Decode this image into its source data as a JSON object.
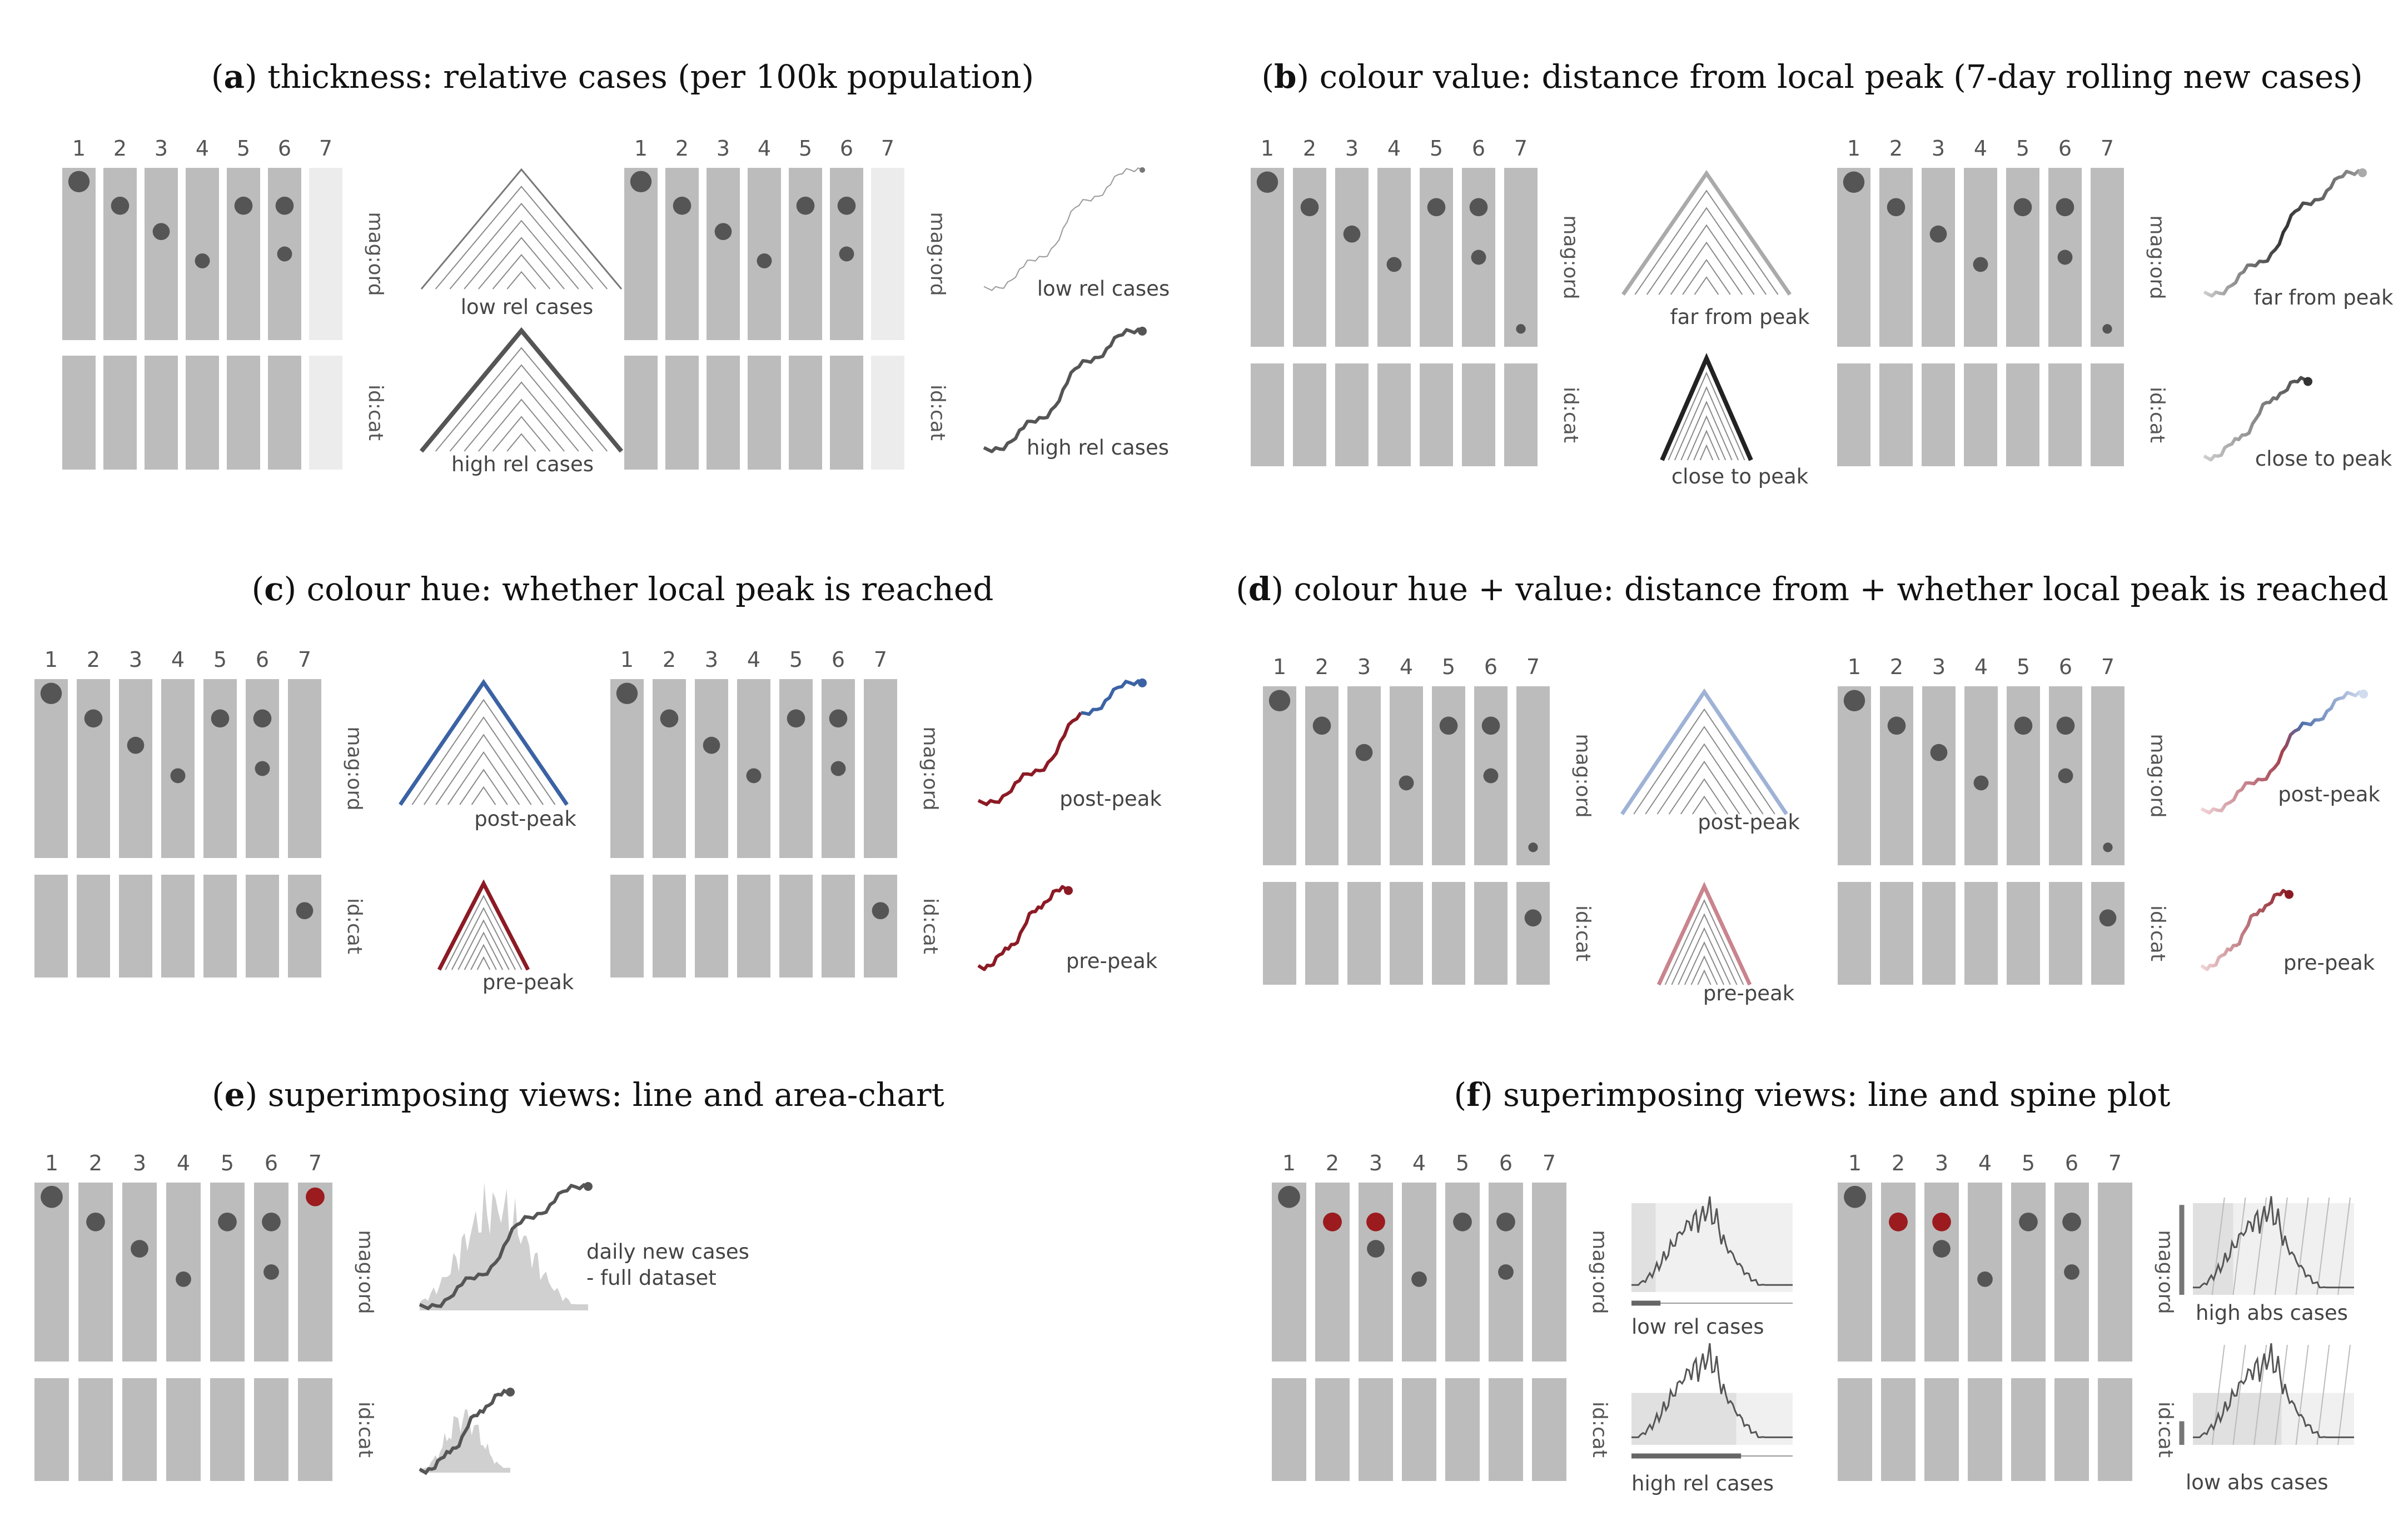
{
  "panels": [
    {
      "id": "a",
      "letter": "a",
      "title": "thickness: relative cases (per 100k population)"
    },
    {
      "id": "b",
      "letter": "b",
      "title": "colour value: distance from local peak (7-day rolling new cases)"
    },
    {
      "id": "c",
      "letter": "c",
      "title": "colour hue: whether local peak is reached"
    },
    {
      "id": "d",
      "letter": "d",
      "title": "colour hue + value: distance from + whether local peak is reached"
    },
    {
      "id": "e",
      "letter": "e",
      "title": "superimposing views: line and area-chart"
    },
    {
      "id": "f",
      "letter": "f",
      "title": "superimposing views: line and spine plot"
    }
  ],
  "column_numbers": [
    "1",
    "2",
    "3",
    "4",
    "5",
    "6",
    "7"
  ],
  "row_labels": {
    "top": "mag:ord",
    "bottom": "id:cat"
  },
  "annotations": {
    "a_low": "low rel cases",
    "a_high": "high rel cases",
    "a_line_low": "low rel cases",
    "a_line_high": "high rel cases",
    "b_far": "far from peak",
    "b_close": "close to peak",
    "b_line_far": "far from peak",
    "b_line_close": "close to peak",
    "c_post": "post-peak",
    "c_pre": "pre-peak",
    "c_line_post": "post-peak",
    "c_line_pre": "pre-peak",
    "d_post": "post-peak",
    "d_pre": "pre-peak",
    "d_line_post": "post-peak",
    "d_line_pre": "pre-peak",
    "e_daily_1": "daily new cases",
    "e_daily_2": "- full dataset",
    "f_low_rel": "low rel cases",
    "f_high_rel": "high rel cases",
    "f_high_abs": "high abs cases",
    "f_low_abs": "low abs cases"
  },
  "colors": {
    "cell": "#bcbcbc",
    "cell_faded": "#ececec",
    "dot": "#555555",
    "dot_red": "#9b1b1e",
    "line_dark": "#555555",
    "blue": "#3b62a4",
    "red": "#8c1a24",
    "light_blue": "#9fb2d6",
    "pink": "#c9848d",
    "area": "#d0d0d0"
  }
}
